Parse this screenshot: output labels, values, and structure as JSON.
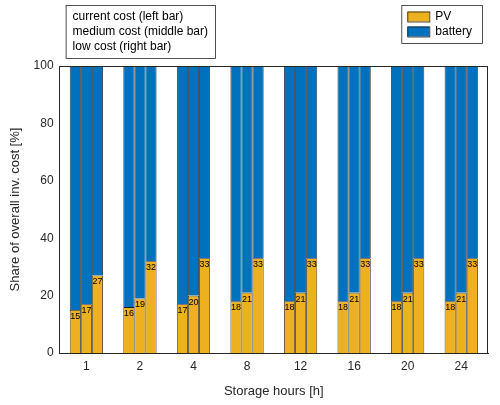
{
  "chart_data": {
    "type": "bar",
    "stacked": true,
    "xlabel": "Storage hours [h]",
    "ylabel": "Share of overall inv. cost [%]",
    "categories": [
      "1",
      "2",
      "4",
      "8",
      "12",
      "16",
      "20",
      "24"
    ],
    "annotation": [
      "current cost (left bar)",
      "medium cost (middle bar)",
      "low cost (right bar)"
    ],
    "ylim": [
      0,
      100
    ],
    "yticks": [
      0,
      20,
      40,
      60,
      80,
      100
    ],
    "grid": false,
    "legend": "upper right",
    "series": [
      {
        "name": "PV",
        "color": "#edb120",
        "data_labels": true,
        "values": [
          [
            15,
            17,
            27
          ],
          [
            16,
            19,
            32
          ],
          [
            17,
            20,
            33
          ],
          [
            18,
            21,
            33
          ],
          [
            18,
            21,
            33
          ],
          [
            18,
            21,
            33
          ],
          [
            18,
            21,
            33
          ],
          [
            18,
            21,
            33
          ]
        ]
      },
      {
        "name": "battery",
        "color": "#0072bd",
        "values": [
          [
            85,
            83,
            73
          ],
          [
            84,
            81,
            68
          ],
          [
            83,
            80,
            67
          ],
          [
            82,
            79,
            67
          ],
          [
            82,
            79,
            67
          ],
          [
            82,
            79,
            67
          ],
          [
            82,
            79,
            67
          ],
          [
            82,
            79,
            67
          ]
        ]
      }
    ]
  }
}
